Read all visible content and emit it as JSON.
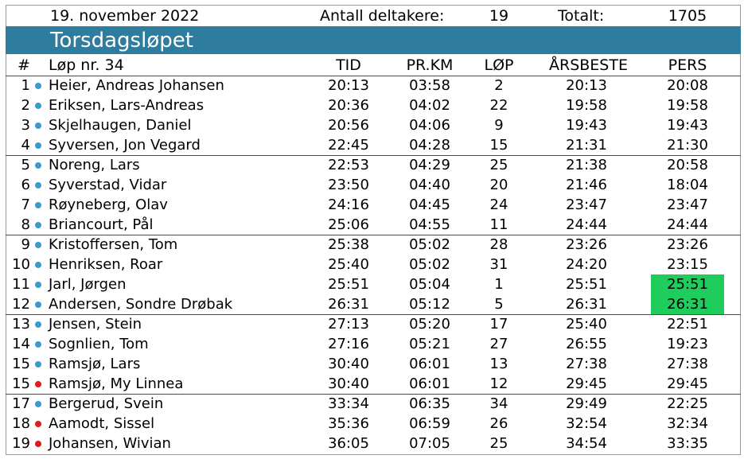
{
  "header": {
    "date": "19. november 2022",
    "participants_label": "Antall deltakere:",
    "participants_value": "19",
    "total_label": "Totalt:",
    "total_value": "1705"
  },
  "title": "Torsdagsløpet",
  "columns": {
    "num": "#",
    "race": "Løp nr. 34",
    "tid": "TID",
    "prkm": "PR.KM",
    "lop": "LØP",
    "ars": "ÅRSBESTE",
    "pers": "PERS"
  },
  "colors": {
    "banner": "#2e7d9e",
    "dot_male": "#3a9ad0",
    "dot_female": "#e01b1b",
    "new_pb_highlight": "#1fcd5c"
  },
  "rows": [
    {
      "num": "1",
      "dot": "blue",
      "name": "Heier, Andreas Johansen",
      "tid": "20:13",
      "prkm": "03:58",
      "lop": "2",
      "ars": "20:13",
      "pers": "20:08"
    },
    {
      "num": "2",
      "dot": "blue",
      "name": "Eriksen, Lars-Andreas",
      "tid": "20:36",
      "prkm": "04:02",
      "lop": "22",
      "ars": "19:58",
      "pers": "19:58"
    },
    {
      "num": "3",
      "dot": "blue",
      "name": "Skjelhaugen, Daniel",
      "tid": "20:56",
      "prkm": "04:06",
      "lop": "9",
      "ars": "19:43",
      "pers": "19:43"
    },
    {
      "num": "4",
      "dot": "blue",
      "name": "Syversen, Jon Vegard",
      "tid": "22:45",
      "prkm": "04:28",
      "lop": "15",
      "ars": "21:31",
      "pers": "21:30"
    },
    {
      "num": "5",
      "dot": "blue",
      "name": "Noreng, Lars",
      "tid": "22:53",
      "prkm": "04:29",
      "lop": "25",
      "ars": "21:38",
      "pers": "20:58"
    },
    {
      "num": "6",
      "dot": "blue",
      "name": "Syverstad, Vidar",
      "tid": "23:50",
      "prkm": "04:40",
      "lop": "20",
      "ars": "21:46",
      "pers": "18:04"
    },
    {
      "num": "7",
      "dot": "blue",
      "name": "Røyneberg, Olav",
      "tid": "24:16",
      "prkm": "04:45",
      "lop": "24",
      "ars": "23:47",
      "pers": "23:47"
    },
    {
      "num": "8",
      "dot": "blue",
      "name": "Briancourt, Pål",
      "tid": "25:06",
      "prkm": "04:55",
      "lop": "11",
      "ars": "24:44",
      "pers": "24:44"
    },
    {
      "num": "9",
      "dot": "blue",
      "name": "Kristoffersen, Tom",
      "tid": "25:38",
      "prkm": "05:02",
      "lop": "28",
      "ars": "23:26",
      "pers": "23:26"
    },
    {
      "num": "10",
      "dot": "blue",
      "name": "Henriksen, Roar",
      "tid": "25:40",
      "prkm": "05:02",
      "lop": "31",
      "ars": "24:20",
      "pers": "23:15"
    },
    {
      "num": "11",
      "dot": "blue",
      "name": "Jarl, Jørgen",
      "tid": "25:51",
      "prkm": "05:04",
      "lop": "1",
      "ars": "25:51",
      "pers": "25:51",
      "highlight": true
    },
    {
      "num": "12",
      "dot": "blue",
      "name": "Andersen, Sondre Drøbak",
      "tid": "26:31",
      "prkm": "05:12",
      "lop": "5",
      "ars": "26:31",
      "pers": "26:31",
      "highlight": true
    },
    {
      "num": "13",
      "dot": "blue",
      "name": "Jensen, Stein",
      "tid": "27:13",
      "prkm": "05:20",
      "lop": "17",
      "ars": "25:40",
      "pers": "22:51"
    },
    {
      "num": "14",
      "dot": "blue",
      "name": "Sognlien, Tom",
      "tid": "27:16",
      "prkm": "05:21",
      "lop": "27",
      "ars": "26:55",
      "pers": "19:23"
    },
    {
      "num": "15",
      "dot": "blue",
      "name": "Ramsjø, Lars",
      "tid": "30:40",
      "prkm": "06:01",
      "lop": "13",
      "ars": "27:38",
      "pers": "27:38"
    },
    {
      "num": "15",
      "dot": "red",
      "name": "Ramsjø, My Linnea",
      "tid": "30:40",
      "prkm": "06:01",
      "lop": "12",
      "ars": "29:45",
      "pers": "29:45"
    },
    {
      "num": "17",
      "dot": "blue",
      "name": "Bergerud, Svein",
      "tid": "33:34",
      "prkm": "06:35",
      "lop": "34",
      "ars": "29:49",
      "pers": "22:25"
    },
    {
      "num": "18",
      "dot": "red",
      "name": "Aamodt, Sissel",
      "tid": "35:36",
      "prkm": "06:59",
      "lop": "26",
      "ars": "32:54",
      "pers": "32:34"
    },
    {
      "num": "19",
      "dot": "red",
      "name": "Johansen, Wivian",
      "tid": "36:05",
      "prkm": "07:05",
      "lop": "25",
      "ars": "34:54",
      "pers": "33:35"
    }
  ]
}
